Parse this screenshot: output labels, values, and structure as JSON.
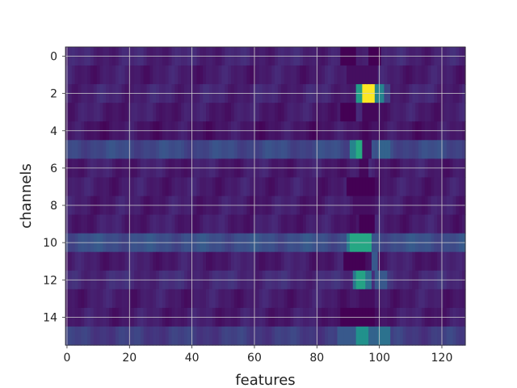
{
  "chart_data": {
    "type": "heatmap",
    "title": "",
    "xlabel": "features",
    "ylabel": "channels",
    "xlim": [
      -0.5,
      127.5
    ],
    "ylim": [
      15.5,
      -0.5
    ],
    "x_ticks": [
      0,
      20,
      40,
      60,
      80,
      100,
      120
    ],
    "y_ticks": [
      0,
      2,
      4,
      6,
      8,
      10,
      12,
      14
    ],
    "n_channels": 16,
    "n_features": 128,
    "grid": true,
    "colormap": "viridis",
    "color_range": [
      0,
      1
    ],
    "row_background": [
      0.1,
      0.08,
      0.1,
      0.08,
      0.06,
      0.22,
      0.08,
      0.08,
      0.08,
      0.08,
      0.24,
      0.08,
      0.12,
      0.08,
      0.08,
      0.18
    ],
    "features_of_note": [
      {
        "channel": 0,
        "segments": [
          [
            88,
            93,
            0.0
          ],
          [
            97,
            101,
            0.0
          ]
        ]
      },
      {
        "channel": 1,
        "segments": [
          [
            90,
            100,
            0.04
          ]
        ]
      },
      {
        "channel": 2,
        "segments": [
          [
            93,
            95,
            0.55
          ],
          [
            95,
            99,
            1.0
          ],
          [
            99,
            102,
            0.45
          ],
          [
            102,
            104,
            0.2
          ]
        ]
      },
      {
        "channel": 3,
        "segments": [
          [
            88,
            93,
            0.0
          ],
          [
            95,
            100,
            0.02
          ]
        ]
      },
      {
        "channel": 5,
        "segments": [
          [
            91,
            93,
            0.45
          ],
          [
            93,
            95,
            0.62
          ],
          [
            95,
            98,
            0.05
          ],
          [
            100,
            104,
            0.32
          ]
        ]
      },
      {
        "channel": 6,
        "segments": [
          [
            94,
            97,
            0.02
          ]
        ]
      },
      {
        "channel": 7,
        "segments": [
          [
            90,
            99,
            0.0
          ]
        ]
      },
      {
        "channel": 8,
        "segments": [
          [
            92,
            98,
            0.04
          ]
        ]
      },
      {
        "channel": 9,
        "segments": [
          [
            94,
            99,
            0.0
          ]
        ]
      },
      {
        "channel": 10,
        "segments": [
          [
            90,
            91,
            0.42
          ],
          [
            91,
            98,
            0.6
          ],
          [
            98,
            99,
            0.25
          ]
        ]
      },
      {
        "channel": 11,
        "segments": [
          [
            89,
            96,
            0.0
          ],
          [
            98,
            100,
            0.28
          ]
        ]
      },
      {
        "channel": 12,
        "segments": [
          [
            92,
            93,
            0.4
          ],
          [
            93,
            96,
            0.58
          ],
          [
            96,
            98,
            0.38
          ],
          [
            99,
            103,
            0.28
          ]
        ]
      },
      {
        "channel": 13,
        "segments": [
          [
            94,
            99,
            0.04
          ]
        ]
      },
      {
        "channel": 14,
        "segments": [
          [
            88,
            99,
            0.0
          ]
        ]
      },
      {
        "channel": 15,
        "segments": [
          [
            87,
            93,
            0.28
          ],
          [
            93,
            97,
            0.5
          ],
          [
            97,
            100,
            0.32
          ],
          [
            100,
            104,
            0.38
          ]
        ]
      }
    ]
  }
}
